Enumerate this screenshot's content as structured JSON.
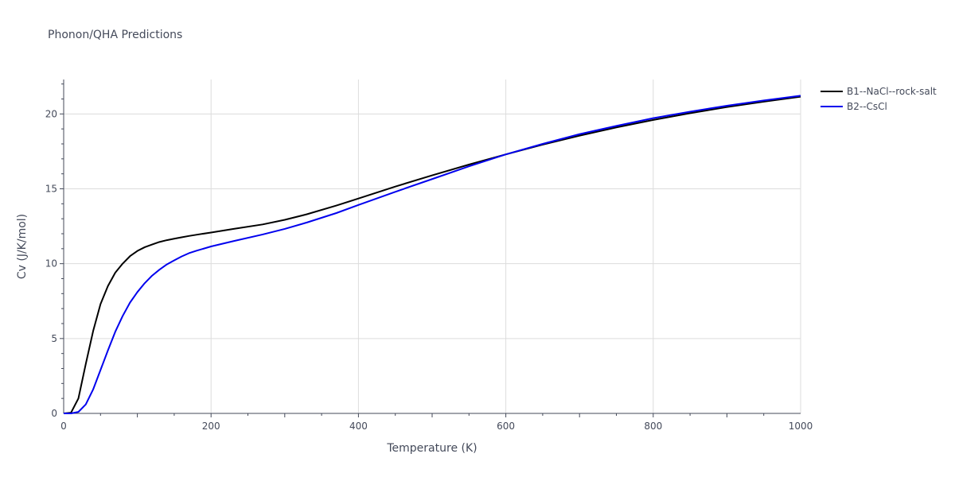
{
  "chart_data": {
    "type": "line",
    "title": "Phonon/QHA Predictions",
    "xlabel": "Temperature (K)",
    "ylabel": "Cv (J/K/mol)",
    "xlim": [
      0,
      1000
    ],
    "ylim": [
      0,
      22.3
    ],
    "xticks": [
      0,
      200,
      400,
      600,
      800,
      1000
    ],
    "yticks": [
      0,
      5,
      10,
      15,
      20
    ],
    "grid": true,
    "legend": "top-right",
    "series": [
      {
        "name": "B1--NaCl--rock-salt",
        "color": "#000000",
        "x": [
          0,
          10,
          20,
          30,
          40,
          50,
          60,
          70,
          80,
          90,
          100,
          110,
          120,
          130,
          140,
          150,
          160,
          170,
          180,
          200,
          230,
          270,
          300,
          330,
          370,
          400,
          450,
          500,
          550,
          600,
          650,
          700,
          750,
          800,
          850,
          900,
          950,
          1000
        ],
        "y": [
          0,
          0.05,
          1.0,
          3.3,
          5.5,
          7.3,
          8.5,
          9.4,
          10.0,
          10.5,
          10.85,
          11.1,
          11.28,
          11.45,
          11.57,
          11.67,
          11.76,
          11.85,
          11.93,
          12.08,
          12.32,
          12.62,
          12.93,
          13.3,
          13.88,
          14.35,
          15.15,
          15.9,
          16.62,
          17.3,
          17.95,
          18.55,
          19.1,
          19.6,
          20.05,
          20.46,
          20.82,
          21.15
        ]
      },
      {
        "name": "B2--CsCl",
        "color": "#0000ee",
        "x": [
          0,
          10,
          20,
          30,
          40,
          50,
          60,
          70,
          80,
          90,
          100,
          110,
          120,
          130,
          140,
          150,
          160,
          170,
          180,
          200,
          230,
          270,
          300,
          330,
          370,
          400,
          450,
          500,
          550,
          600,
          650,
          700,
          750,
          800,
          850,
          900,
          950,
          1000
        ],
        "y": [
          0,
          0,
          0.1,
          0.6,
          1.6,
          2.9,
          4.2,
          5.45,
          6.5,
          7.4,
          8.1,
          8.7,
          9.2,
          9.6,
          9.95,
          10.22,
          10.48,
          10.7,
          10.86,
          11.15,
          11.5,
          11.95,
          12.32,
          12.75,
          13.38,
          13.92,
          14.8,
          15.65,
          16.5,
          17.3,
          18.0,
          18.65,
          19.2,
          19.72,
          20.15,
          20.55,
          20.9,
          21.22
        ]
      }
    ]
  }
}
